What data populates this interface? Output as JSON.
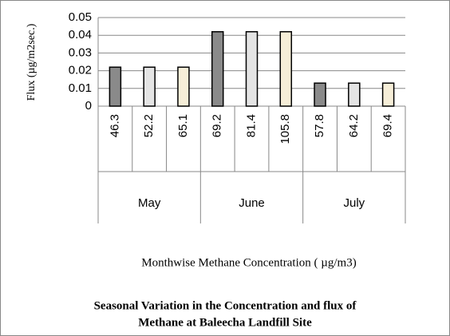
{
  "chart_data": {
    "type": "bar",
    "title": [
      "Seasonal Variation in the Concentration and flux of",
      "Methane at Baleecha Landfill Site"
    ],
    "y_label": "Flux  (µg/m2sec.)",
    "x_label": "Monthwise Methane Concentration ( µg/m3)",
    "categories": [
      "46.3",
      "52.2",
      "65.1",
      "69.2",
      "81.4",
      "105.8",
      "57.8",
      "64.2",
      "69.4"
    ],
    "groups": [
      "May",
      "June",
      "July"
    ],
    "values": [
      0.022,
      0.022,
      0.022,
      0.042,
      0.042,
      0.042,
      0.013,
      0.013,
      0.013
    ],
    "colors": [
      "#8a8a8a",
      "#e4e4e4",
      "#f6eed8",
      "#8a8a8a",
      "#e4e4e4",
      "#f6eed8",
      "#8a8a8a",
      "#e4e4e4",
      "#f6eed8"
    ],
    "ylim": [
      0,
      0.05
    ],
    "yticks": [
      0,
      0.01,
      0.02,
      0.03,
      0.04,
      0.05
    ],
    "grid": true
  }
}
